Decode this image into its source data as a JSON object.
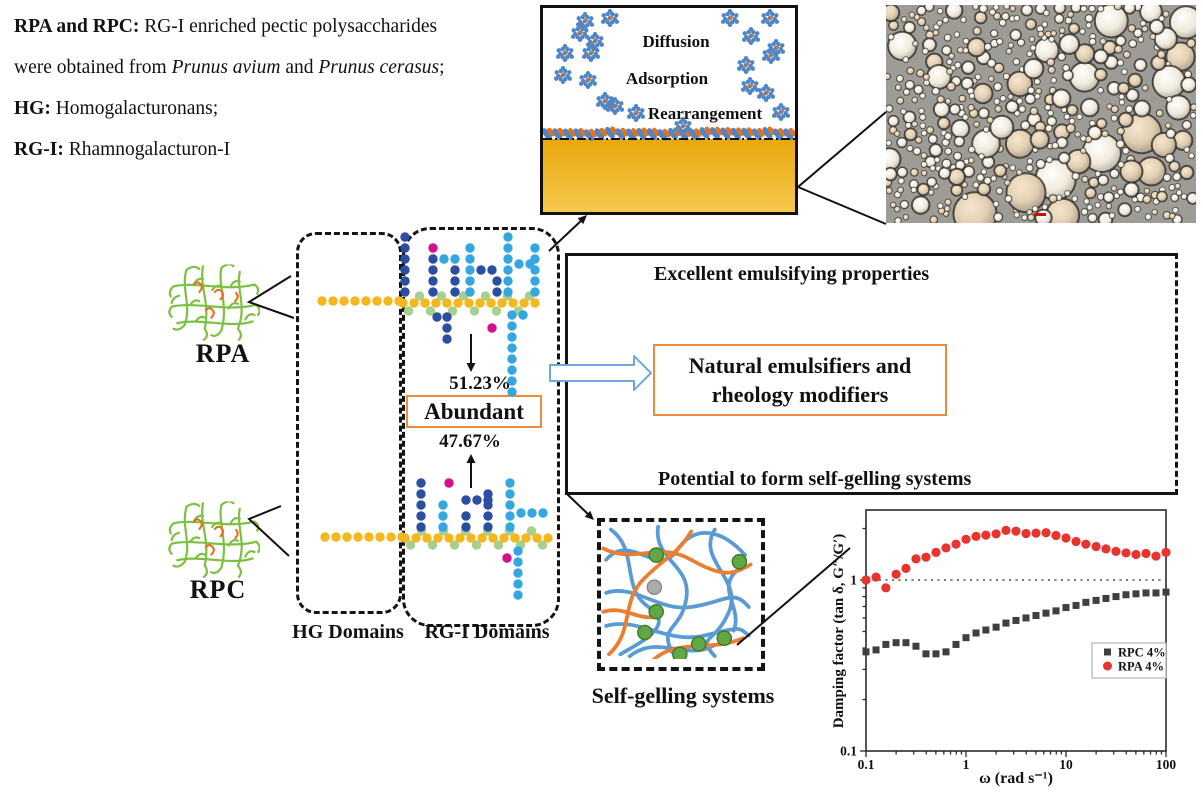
{
  "definitions": {
    "l1_bold": "RPA and RPC:",
    "l1_rest": " RG-I enriched pectic polysaccharides",
    "l2_pre": "were obtained from ",
    "l2_it1": "Prunus avium",
    "l2_mid": " and ",
    "l2_it2": "Prunus cerasus",
    "l2_post": ";",
    "l3_bold": "HG:",
    "l3_rest": " Homogalacturonans;",
    "l4_bold": "RG-I:",
    "l4_rest": " Rhamnogalacturon-I"
  },
  "interface_panel": {
    "label_diffusion": "Diffusion",
    "label_adsorption": "Adsorption",
    "label_rearrangement": "Rearrangement"
  },
  "molecules": {
    "rpa_label": "RPA",
    "rpc_label": "RPC",
    "hg_label": "HG Domains",
    "rgi_label": "RG-I Domains",
    "upper_pct": "51.23%",
    "abundant": "Abundant",
    "lower_pct": "47.67%"
  },
  "outcomes": {
    "emulsifying": "Excellent emulsifying properties",
    "natural_line1": "Natural emulsifiers and",
    "natural_line2": "rheology modifiers",
    "gelling": "Potential to form self-gelling systems",
    "selfgel_label": "Self-gelling systems"
  },
  "colors": {
    "oil_gold_top": "#E9A70C",
    "oil_gold_bottom": "#F5C84E",
    "particle_blue": "#4E86C7",
    "particle_orange": "#E8701A",
    "backbone_yellow": "#F5B71F",
    "rhamnose_green": "#A8D08D",
    "sidechain_darkblue": "#2B4EA2",
    "sidechain_cyan": "#35A7E0",
    "tip_magenta": "#D60F8E",
    "pectin_green": "#7CC142",
    "network_blue": "#5B9BD5",
    "network_orange": "#ED7D31",
    "node_green": "#61A744",
    "node_gray": "#ABABAB",
    "highlight_orange_border": "#ED8A3F",
    "block_arrow_blue": "#6FA8DC",
    "series_rpc": "#3F3F3F",
    "series_rpa": "#E8342E"
  },
  "chart_data": {
    "type": "scatter",
    "title": "",
    "xlabel": "ω (rad s⁻¹)",
    "ylabel": "Damping factor (tan δ, G″/G′)",
    "xscale": "log",
    "yscale": "log",
    "xlim": [
      0.1,
      100
    ],
    "ylim": [
      0.1,
      2.6
    ],
    "x_ticks": [
      "0.1",
      "1",
      "10",
      "100"
    ],
    "x_tick_values": [
      0.1,
      1,
      10,
      100
    ],
    "y_ticks": [
      "0.1",
      "1"
    ],
    "y_tick_values": [
      0.1,
      1
    ],
    "reference_line_y": 1,
    "legend_position": "right-center",
    "grid": false,
    "x": [
      0.1,
      0.126,
      0.158,
      0.2,
      0.251,
      0.316,
      0.398,
      0.501,
      0.631,
      0.794,
      1,
      1.26,
      1.58,
      2,
      2.51,
      3.16,
      3.98,
      5.01,
      6.31,
      7.94,
      10,
      12.6,
      15.8,
      20,
      25.1,
      31.6,
      39.8,
      50.1,
      63.1,
      79.4,
      100
    ],
    "series": [
      {
        "name": "RPC 4%",
        "marker": "square",
        "color": "#3F3F3F",
        "values": [
          0.38,
          0.39,
          0.42,
          0.43,
          0.43,
          0.41,
          0.37,
          0.37,
          0.38,
          0.42,
          0.46,
          0.49,
          0.51,
          0.53,
          0.56,
          0.58,
          0.6,
          0.62,
          0.64,
          0.66,
          0.69,
          0.71,
          0.74,
          0.76,
          0.78,
          0.8,
          0.82,
          0.83,
          0.84,
          0.84,
          0.85
        ]
      },
      {
        "name": "RPA 4%",
        "marker": "circle",
        "color": "#E8342E",
        "values": [
          1.0,
          1.04,
          0.9,
          1.08,
          1.17,
          1.33,
          1.36,
          1.45,
          1.54,
          1.62,
          1.73,
          1.8,
          1.83,
          1.86,
          1.95,
          1.93,
          1.87,
          1.88,
          1.89,
          1.82,
          1.76,
          1.68,
          1.62,
          1.57,
          1.52,
          1.47,
          1.44,
          1.41,
          1.43,
          1.38,
          1.45
        ]
      }
    ]
  }
}
